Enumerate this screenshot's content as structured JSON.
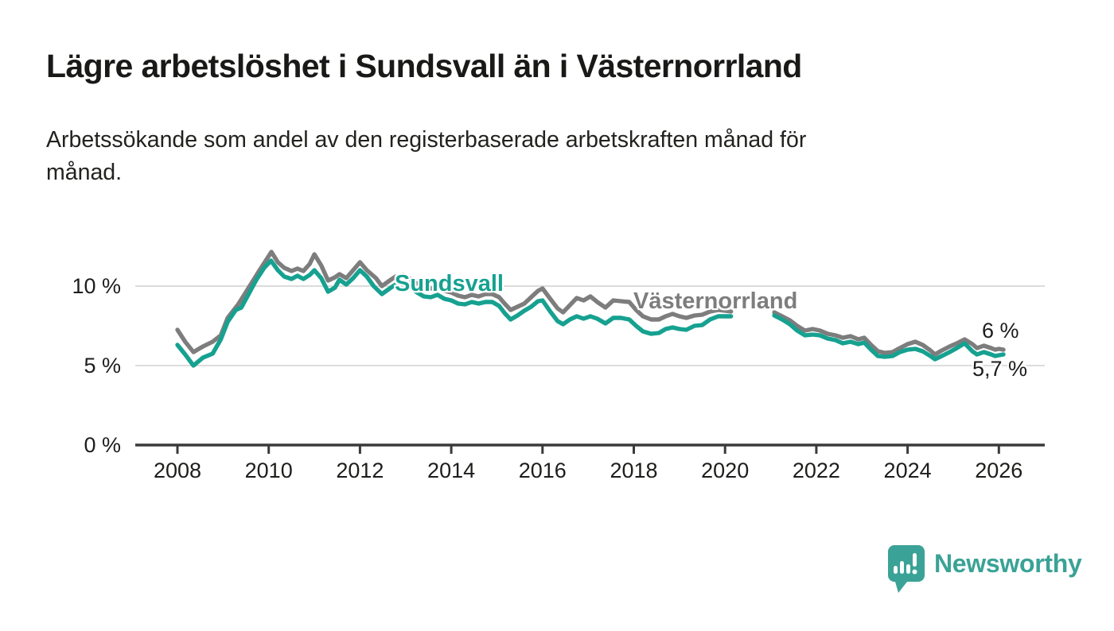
{
  "header": {
    "title": "Lägre arbetslöshet i Sundsvall än i Västernorrland",
    "subtitle": "Arbetssökande som andel av den registerbaserade arbetskraften månad för\nmånad."
  },
  "branding": {
    "wordmark": "Newsworthy",
    "logo_color": "#3aa296",
    "logo_icon": "speech-bubble-bar-chart"
  },
  "chart_data": {
    "type": "line",
    "title": "Lägre arbetslöshet i Sundsvall än i Västernorrland",
    "xlabel": "",
    "ylabel": "",
    "xlim": [
      2007.1,
      2027.0
    ],
    "ylim": [
      0,
      12.5
    ],
    "grid": true,
    "gridline_color": "#dcdcdc",
    "axis_color": "#3a3a3a",
    "y_ticks": [
      {
        "v": 0,
        "label": "0 %"
      },
      {
        "v": 5,
        "label": "5 %"
      },
      {
        "v": 10,
        "label": "10 %"
      }
    ],
    "x_ticks": [
      {
        "v": 2008,
        "label": "2008"
      },
      {
        "v": 2010,
        "label": "2010"
      },
      {
        "v": 2012,
        "label": "2012"
      },
      {
        "v": 2014,
        "label": "2014"
      },
      {
        "v": 2016,
        "label": "2016"
      },
      {
        "v": 2018,
        "label": "2018"
      },
      {
        "v": 2020,
        "label": "2020"
      },
      {
        "v": 2022,
        "label": "2022"
      },
      {
        "v": 2024,
        "label": "2024"
      },
      {
        "v": 2026,
        "label": "2026"
      }
    ],
    "data_gap": {
      "from": 2020.15,
      "to": 2021.05
    },
    "series": [
      {
        "name": "Västernorrland",
        "key": "vasternorrland",
        "color": "#7d7d7d",
        "end_label": "6 %",
        "end_value": 6.0,
        "segments": [
          [
            [
              2008.0,
              7.25
            ],
            [
              2008.17,
              6.5
            ],
            [
              2008.35,
              5.85
            ],
            [
              2008.56,
              6.2
            ],
            [
              2008.77,
              6.5
            ],
            [
              2008.95,
              6.9
            ],
            [
              2009.1,
              8.0
            ],
            [
              2009.33,
              8.85
            ],
            [
              2009.56,
              9.9
            ],
            [
              2009.8,
              11.0
            ],
            [
              2010.06,
              12.15
            ],
            [
              2010.2,
              11.5
            ],
            [
              2010.34,
              11.15
            ],
            [
              2010.5,
              10.95
            ],
            [
              2010.63,
              11.1
            ],
            [
              2010.76,
              10.95
            ],
            [
              2010.9,
              11.4
            ],
            [
              2011.0,
              12.0
            ],
            [
              2011.15,
              11.3
            ],
            [
              2011.3,
              10.35
            ],
            [
              2011.45,
              10.55
            ],
            [
              2011.55,
              10.75
            ],
            [
              2011.7,
              10.5
            ],
            [
              2011.85,
              11.0
            ],
            [
              2012.0,
              11.5
            ],
            [
              2012.15,
              11.0
            ],
            [
              2012.35,
              10.5
            ],
            [
              2012.48,
              10.0
            ],
            [
              2012.65,
              10.35
            ],
            [
              2012.78,
              10.6
            ],
            [
              2012.95,
              10.7
            ],
            [
              2013.1,
              10.45
            ],
            [
              2013.25,
              10.15
            ],
            [
              2013.4,
              9.9
            ],
            [
              2013.55,
              9.85
            ],
            [
              2013.7,
              9.95
            ],
            [
              2013.85,
              9.7
            ],
            [
              2014.0,
              9.6
            ],
            [
              2014.15,
              9.4
            ],
            [
              2014.3,
              9.3
            ],
            [
              2014.45,
              9.45
            ],
            [
              2014.6,
              9.35
            ],
            [
              2014.75,
              9.5
            ],
            [
              2014.9,
              9.5
            ],
            [
              2015.05,
              9.3
            ],
            [
              2015.17,
              8.9
            ],
            [
              2015.3,
              8.5
            ],
            [
              2015.45,
              8.7
            ],
            [
              2015.6,
              8.9
            ],
            [
              2015.75,
              9.3
            ],
            [
              2015.9,
              9.7
            ],
            [
              2016.0,
              9.85
            ],
            [
              2016.17,
              9.2
            ],
            [
              2016.33,
              8.6
            ],
            [
              2016.45,
              8.35
            ],
            [
              2016.6,
              8.8
            ],
            [
              2016.75,
              9.25
            ],
            [
              2016.9,
              9.1
            ],
            [
              2017.05,
              9.35
            ],
            [
              2017.2,
              9.0
            ],
            [
              2017.38,
              8.65
            ],
            [
              2017.55,
              9.1
            ],
            [
              2017.72,
              9.05
            ],
            [
              2017.9,
              9.0
            ],
            [
              2018.05,
              8.5
            ],
            [
              2018.2,
              8.1
            ],
            [
              2018.38,
              7.9
            ],
            [
              2018.55,
              7.9
            ],
            [
              2018.7,
              8.1
            ],
            [
              2018.85,
              8.25
            ],
            [
              2019.0,
              8.1
            ],
            [
              2019.15,
              8.0
            ],
            [
              2019.33,
              8.15
            ],
            [
              2019.5,
              8.2
            ],
            [
              2019.67,
              8.4
            ],
            [
              2019.85,
              8.5
            ],
            [
              2020.0,
              8.45
            ],
            [
              2020.13,
              8.4
            ]
          ],
          [
            [
              2021.08,
              8.35
            ],
            [
              2021.25,
              8.1
            ],
            [
              2021.42,
              7.85
            ],
            [
              2021.58,
              7.5
            ],
            [
              2021.75,
              7.2
            ],
            [
              2021.92,
              7.3
            ],
            [
              2022.08,
              7.2
            ],
            [
              2022.25,
              7.0
            ],
            [
              2022.42,
              6.9
            ],
            [
              2022.58,
              6.75
            ],
            [
              2022.75,
              6.85
            ],
            [
              2022.92,
              6.65
            ],
            [
              2023.05,
              6.75
            ],
            [
              2023.2,
              6.3
            ],
            [
              2023.35,
              5.9
            ],
            [
              2023.5,
              5.8
            ],
            [
              2023.67,
              5.85
            ],
            [
              2023.83,
              6.1
            ],
            [
              2024.0,
              6.35
            ],
            [
              2024.17,
              6.5
            ],
            [
              2024.33,
              6.3
            ],
            [
              2024.5,
              5.95
            ],
            [
              2024.6,
              5.7
            ],
            [
              2024.75,
              5.95
            ],
            [
              2024.92,
              6.2
            ],
            [
              2025.08,
              6.4
            ],
            [
              2025.25,
              6.65
            ],
            [
              2025.42,
              6.35
            ],
            [
              2025.52,
              6.1
            ],
            [
              2025.67,
              6.25
            ],
            [
              2025.83,
              6.1
            ],
            [
              2025.92,
              6.0
            ],
            [
              2026.0,
              6.05
            ],
            [
              2026.1,
              6.0
            ]
          ]
        ]
      },
      {
        "name": "Sundsvall",
        "key": "sundsvall",
        "color": "#16a190",
        "end_label": "5,7 %",
        "end_value": 5.7,
        "segments": [
          [
            [
              2008.0,
              6.3
            ],
            [
              2008.17,
              5.7
            ],
            [
              2008.35,
              5.0
            ],
            [
              2008.56,
              5.5
            ],
            [
              2008.77,
              5.75
            ],
            [
              2008.95,
              6.65
            ],
            [
              2009.1,
              7.75
            ],
            [
              2009.28,
              8.5
            ],
            [
              2009.4,
              8.65
            ],
            [
              2009.56,
              9.5
            ],
            [
              2009.73,
              10.4
            ],
            [
              2009.9,
              11.15
            ],
            [
              2010.05,
              11.6
            ],
            [
              2010.2,
              11.0
            ],
            [
              2010.34,
              10.6
            ],
            [
              2010.5,
              10.45
            ],
            [
              2010.63,
              10.65
            ],
            [
              2010.76,
              10.45
            ],
            [
              2010.9,
              10.7
            ],
            [
              2011.0,
              11.0
            ],
            [
              2011.15,
              10.5
            ],
            [
              2011.3,
              9.65
            ],
            [
              2011.45,
              9.9
            ],
            [
              2011.55,
              10.4
            ],
            [
              2011.7,
              10.1
            ],
            [
              2011.85,
              10.5
            ],
            [
              2012.0,
              11.0
            ],
            [
              2012.15,
              10.6
            ],
            [
              2012.3,
              10.0
            ],
            [
              2012.48,
              9.5
            ],
            [
              2012.65,
              9.85
            ],
            [
              2012.78,
              10.1
            ],
            [
              2012.95,
              10.05
            ],
            [
              2013.1,
              9.9
            ],
            [
              2013.25,
              9.6
            ],
            [
              2013.4,
              9.35
            ],
            [
              2013.55,
              9.3
            ],
            [
              2013.7,
              9.45
            ],
            [
              2013.85,
              9.2
            ],
            [
              2014.0,
              9.1
            ],
            [
              2014.15,
              8.9
            ],
            [
              2014.3,
              8.85
            ],
            [
              2014.45,
              9.0
            ],
            [
              2014.6,
              8.9
            ],
            [
              2014.75,
              9.0
            ],
            [
              2014.9,
              9.0
            ],
            [
              2015.05,
              8.75
            ],
            [
              2015.17,
              8.3
            ],
            [
              2015.3,
              7.9
            ],
            [
              2015.45,
              8.15
            ],
            [
              2015.6,
              8.45
            ],
            [
              2015.75,
              8.7
            ],
            [
              2015.9,
              9.05
            ],
            [
              2016.0,
              9.1
            ],
            [
              2016.17,
              8.4
            ],
            [
              2016.33,
              7.8
            ],
            [
              2016.45,
              7.6
            ],
            [
              2016.6,
              7.9
            ],
            [
              2016.75,
              8.1
            ],
            [
              2016.9,
              7.95
            ],
            [
              2017.05,
              8.1
            ],
            [
              2017.2,
              7.95
            ],
            [
              2017.38,
              7.65
            ],
            [
              2017.55,
              8.0
            ],
            [
              2017.72,
              8.0
            ],
            [
              2017.9,
              7.9
            ],
            [
              2018.05,
              7.5
            ],
            [
              2018.2,
              7.15
            ],
            [
              2018.38,
              7.0
            ],
            [
              2018.55,
              7.05
            ],
            [
              2018.7,
              7.3
            ],
            [
              2018.85,
              7.4
            ],
            [
              2019.0,
              7.3
            ],
            [
              2019.15,
              7.25
            ],
            [
              2019.33,
              7.5
            ],
            [
              2019.5,
              7.55
            ],
            [
              2019.67,
              7.9
            ],
            [
              2019.85,
              8.1
            ],
            [
              2020.0,
              8.1
            ],
            [
              2020.13,
              8.1
            ]
          ],
          [
            [
              2021.08,
              8.15
            ],
            [
              2021.25,
              7.9
            ],
            [
              2021.42,
              7.6
            ],
            [
              2021.58,
              7.2
            ],
            [
              2021.75,
              6.9
            ],
            [
              2021.92,
              6.95
            ],
            [
              2022.08,
              6.9
            ],
            [
              2022.25,
              6.7
            ],
            [
              2022.42,
              6.6
            ],
            [
              2022.58,
              6.4
            ],
            [
              2022.75,
              6.5
            ],
            [
              2022.92,
              6.35
            ],
            [
              2023.05,
              6.45
            ],
            [
              2023.2,
              6.0
            ],
            [
              2023.35,
              5.6
            ],
            [
              2023.5,
              5.55
            ],
            [
              2023.67,
              5.6
            ],
            [
              2023.83,
              5.85
            ],
            [
              2024.0,
              6.0
            ],
            [
              2024.17,
              6.05
            ],
            [
              2024.33,
              5.9
            ],
            [
              2024.5,
              5.6
            ],
            [
              2024.6,
              5.4
            ],
            [
              2024.75,
              5.6
            ],
            [
              2024.92,
              5.85
            ],
            [
              2025.08,
              6.1
            ],
            [
              2025.25,
              6.4
            ],
            [
              2025.42,
              5.9
            ],
            [
              2025.52,
              5.7
            ],
            [
              2025.67,
              5.85
            ],
            [
              2025.83,
              5.7
            ],
            [
              2025.92,
              5.6
            ],
            [
              2026.0,
              5.65
            ],
            [
              2026.1,
              5.7
            ]
          ]
        ]
      }
    ]
  }
}
